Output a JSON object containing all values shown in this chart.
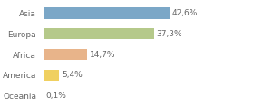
{
  "categories": [
    "Asia",
    "Europa",
    "Africa",
    "America",
    "Oceania"
  ],
  "values": [
    42.6,
    37.3,
    14.7,
    5.4,
    0.1
  ],
  "labels": [
    "42,6%",
    "37,3%",
    "14,7%",
    "5,4%",
    "0,1%"
  ],
  "bar_colors": [
    "#7ba7c7",
    "#b5c98a",
    "#e8b48a",
    "#f0d060",
    "#e8e8e8"
  ],
  "background_color": "#ffffff",
  "text_color": "#666666",
  "label_fontsize": 6.5,
  "category_fontsize": 6.5,
  "xlim": [
    0,
    70
  ],
  "bar_height": 0.55
}
